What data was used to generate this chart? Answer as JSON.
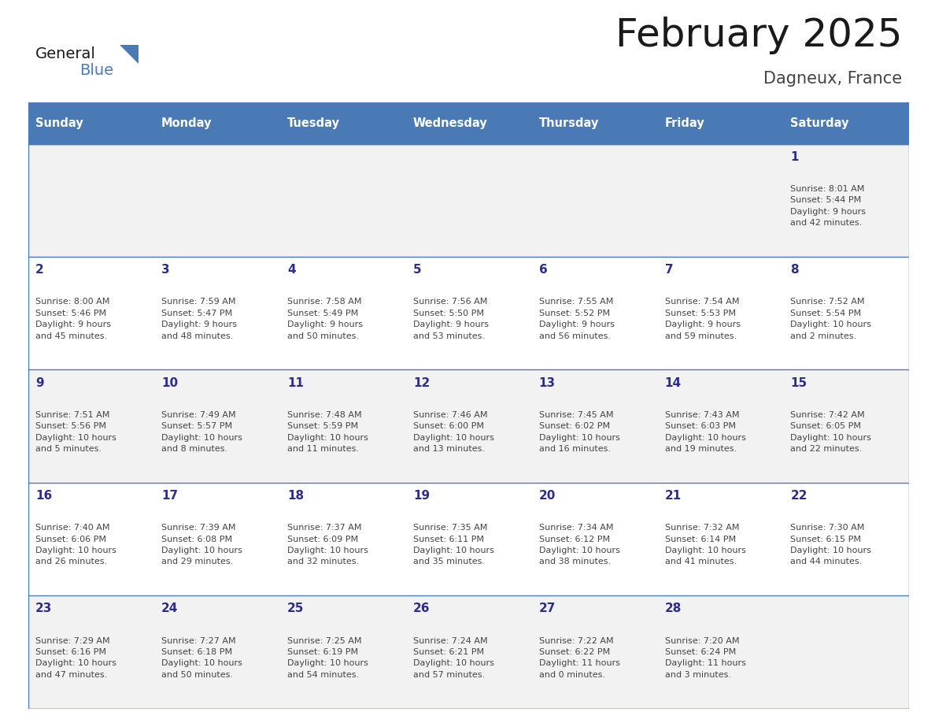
{
  "title": "February 2025",
  "subtitle": "Dagneux, France",
  "days_of_week": [
    "Sunday",
    "Monday",
    "Tuesday",
    "Wednesday",
    "Thursday",
    "Friday",
    "Saturday"
  ],
  "header_bg": "#4a7ab5",
  "header_text": "#ffffff",
  "row_bg_odd": "#f2f2f2",
  "row_bg_even": "#ffffff",
  "border_color": "#4a7ab5",
  "day_number_color": "#2c2c8c",
  "info_text_color": "#444444",
  "title_color": "#1a1a1a",
  "subtitle_color": "#444444",
  "logo_general_color": "#1a1a1a",
  "logo_blue_color": "#4a7ab5",
  "weeks": [
    {
      "days": [
        {
          "date": "",
          "info": ""
        },
        {
          "date": "",
          "info": ""
        },
        {
          "date": "",
          "info": ""
        },
        {
          "date": "",
          "info": ""
        },
        {
          "date": "",
          "info": ""
        },
        {
          "date": "",
          "info": ""
        },
        {
          "date": "1",
          "info": "Sunrise: 8:01 AM\nSunset: 5:44 PM\nDaylight: 9 hours\nand 42 minutes."
        }
      ]
    },
    {
      "days": [
        {
          "date": "2",
          "info": "Sunrise: 8:00 AM\nSunset: 5:46 PM\nDaylight: 9 hours\nand 45 minutes."
        },
        {
          "date": "3",
          "info": "Sunrise: 7:59 AM\nSunset: 5:47 PM\nDaylight: 9 hours\nand 48 minutes."
        },
        {
          "date": "4",
          "info": "Sunrise: 7:58 AM\nSunset: 5:49 PM\nDaylight: 9 hours\nand 50 minutes."
        },
        {
          "date": "5",
          "info": "Sunrise: 7:56 AM\nSunset: 5:50 PM\nDaylight: 9 hours\nand 53 minutes."
        },
        {
          "date": "6",
          "info": "Sunrise: 7:55 AM\nSunset: 5:52 PM\nDaylight: 9 hours\nand 56 minutes."
        },
        {
          "date": "7",
          "info": "Sunrise: 7:54 AM\nSunset: 5:53 PM\nDaylight: 9 hours\nand 59 minutes."
        },
        {
          "date": "8",
          "info": "Sunrise: 7:52 AM\nSunset: 5:54 PM\nDaylight: 10 hours\nand 2 minutes."
        }
      ]
    },
    {
      "days": [
        {
          "date": "9",
          "info": "Sunrise: 7:51 AM\nSunset: 5:56 PM\nDaylight: 10 hours\nand 5 minutes."
        },
        {
          "date": "10",
          "info": "Sunrise: 7:49 AM\nSunset: 5:57 PM\nDaylight: 10 hours\nand 8 minutes."
        },
        {
          "date": "11",
          "info": "Sunrise: 7:48 AM\nSunset: 5:59 PM\nDaylight: 10 hours\nand 11 minutes."
        },
        {
          "date": "12",
          "info": "Sunrise: 7:46 AM\nSunset: 6:00 PM\nDaylight: 10 hours\nand 13 minutes."
        },
        {
          "date": "13",
          "info": "Sunrise: 7:45 AM\nSunset: 6:02 PM\nDaylight: 10 hours\nand 16 minutes."
        },
        {
          "date": "14",
          "info": "Sunrise: 7:43 AM\nSunset: 6:03 PM\nDaylight: 10 hours\nand 19 minutes."
        },
        {
          "date": "15",
          "info": "Sunrise: 7:42 AM\nSunset: 6:05 PM\nDaylight: 10 hours\nand 22 minutes."
        }
      ]
    },
    {
      "days": [
        {
          "date": "16",
          "info": "Sunrise: 7:40 AM\nSunset: 6:06 PM\nDaylight: 10 hours\nand 26 minutes."
        },
        {
          "date": "17",
          "info": "Sunrise: 7:39 AM\nSunset: 6:08 PM\nDaylight: 10 hours\nand 29 minutes."
        },
        {
          "date": "18",
          "info": "Sunrise: 7:37 AM\nSunset: 6:09 PM\nDaylight: 10 hours\nand 32 minutes."
        },
        {
          "date": "19",
          "info": "Sunrise: 7:35 AM\nSunset: 6:11 PM\nDaylight: 10 hours\nand 35 minutes."
        },
        {
          "date": "20",
          "info": "Sunrise: 7:34 AM\nSunset: 6:12 PM\nDaylight: 10 hours\nand 38 minutes."
        },
        {
          "date": "21",
          "info": "Sunrise: 7:32 AM\nSunset: 6:14 PM\nDaylight: 10 hours\nand 41 minutes."
        },
        {
          "date": "22",
          "info": "Sunrise: 7:30 AM\nSunset: 6:15 PM\nDaylight: 10 hours\nand 44 minutes."
        }
      ]
    },
    {
      "days": [
        {
          "date": "23",
          "info": "Sunrise: 7:29 AM\nSunset: 6:16 PM\nDaylight: 10 hours\nand 47 minutes."
        },
        {
          "date": "24",
          "info": "Sunrise: 7:27 AM\nSunset: 6:18 PM\nDaylight: 10 hours\nand 50 minutes."
        },
        {
          "date": "25",
          "info": "Sunrise: 7:25 AM\nSunset: 6:19 PM\nDaylight: 10 hours\nand 54 minutes."
        },
        {
          "date": "26",
          "info": "Sunrise: 7:24 AM\nSunset: 6:21 PM\nDaylight: 10 hours\nand 57 minutes."
        },
        {
          "date": "27",
          "info": "Sunrise: 7:22 AM\nSunset: 6:22 PM\nDaylight: 11 hours\nand 0 minutes."
        },
        {
          "date": "28",
          "info": "Sunrise: 7:20 AM\nSunset: 6:24 PM\nDaylight: 11 hours\nand 3 minutes."
        },
        {
          "date": "",
          "info": ""
        }
      ]
    }
  ]
}
